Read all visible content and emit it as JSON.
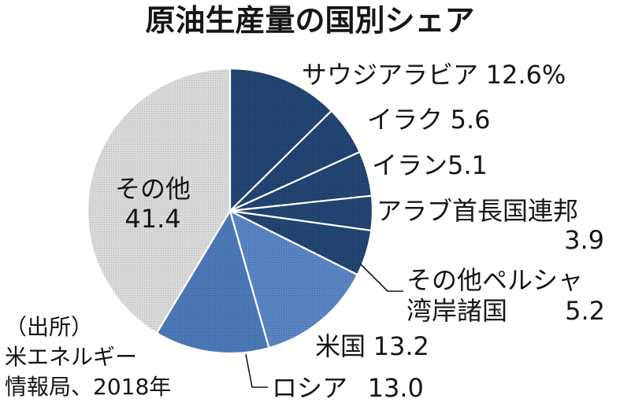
{
  "chart_data": {
    "type": "pie",
    "title": "原油生産量の国別シェア",
    "slices": [
      {
        "name_lines": [
          "サウジアラビア"
        ],
        "value": 12.6,
        "value_label": "12.6%",
        "color": "#1e416f"
      },
      {
        "name_lines": [
          "イラク"
        ],
        "value": 5.6,
        "value_label": "5.6",
        "color": "#1e416f"
      },
      {
        "name_lines": [
          "イラン"
        ],
        "value": 5.1,
        "value_label": "5.1",
        "color": "#1e416f"
      },
      {
        "name_lines": [
          "アラブ首長国連邦"
        ],
        "value": 3.9,
        "value_label": "3.9",
        "color": "#1e416f"
      },
      {
        "name_lines": [
          "その他ペルシャ",
          "湾岸諸国"
        ],
        "value": 5.2,
        "value_label": "5.2",
        "color": "#1e416f"
      },
      {
        "name_lines": [
          "米国"
        ],
        "value": 13.2,
        "value_label": "13.2",
        "color": "#5782c2"
      },
      {
        "name_lines": [
          "ロシア"
        ],
        "value": 13.0,
        "value_label": "13.0",
        "color": "#4a76b6"
      },
      {
        "name_lines": [
          "その他"
        ],
        "value": 41.4,
        "value_label": "41.4",
        "color": "#d9d9d9"
      }
    ]
  },
  "source": {
    "lines": [
      "（出所）",
      "米エネルギー",
      "情報局、2018年"
    ]
  }
}
